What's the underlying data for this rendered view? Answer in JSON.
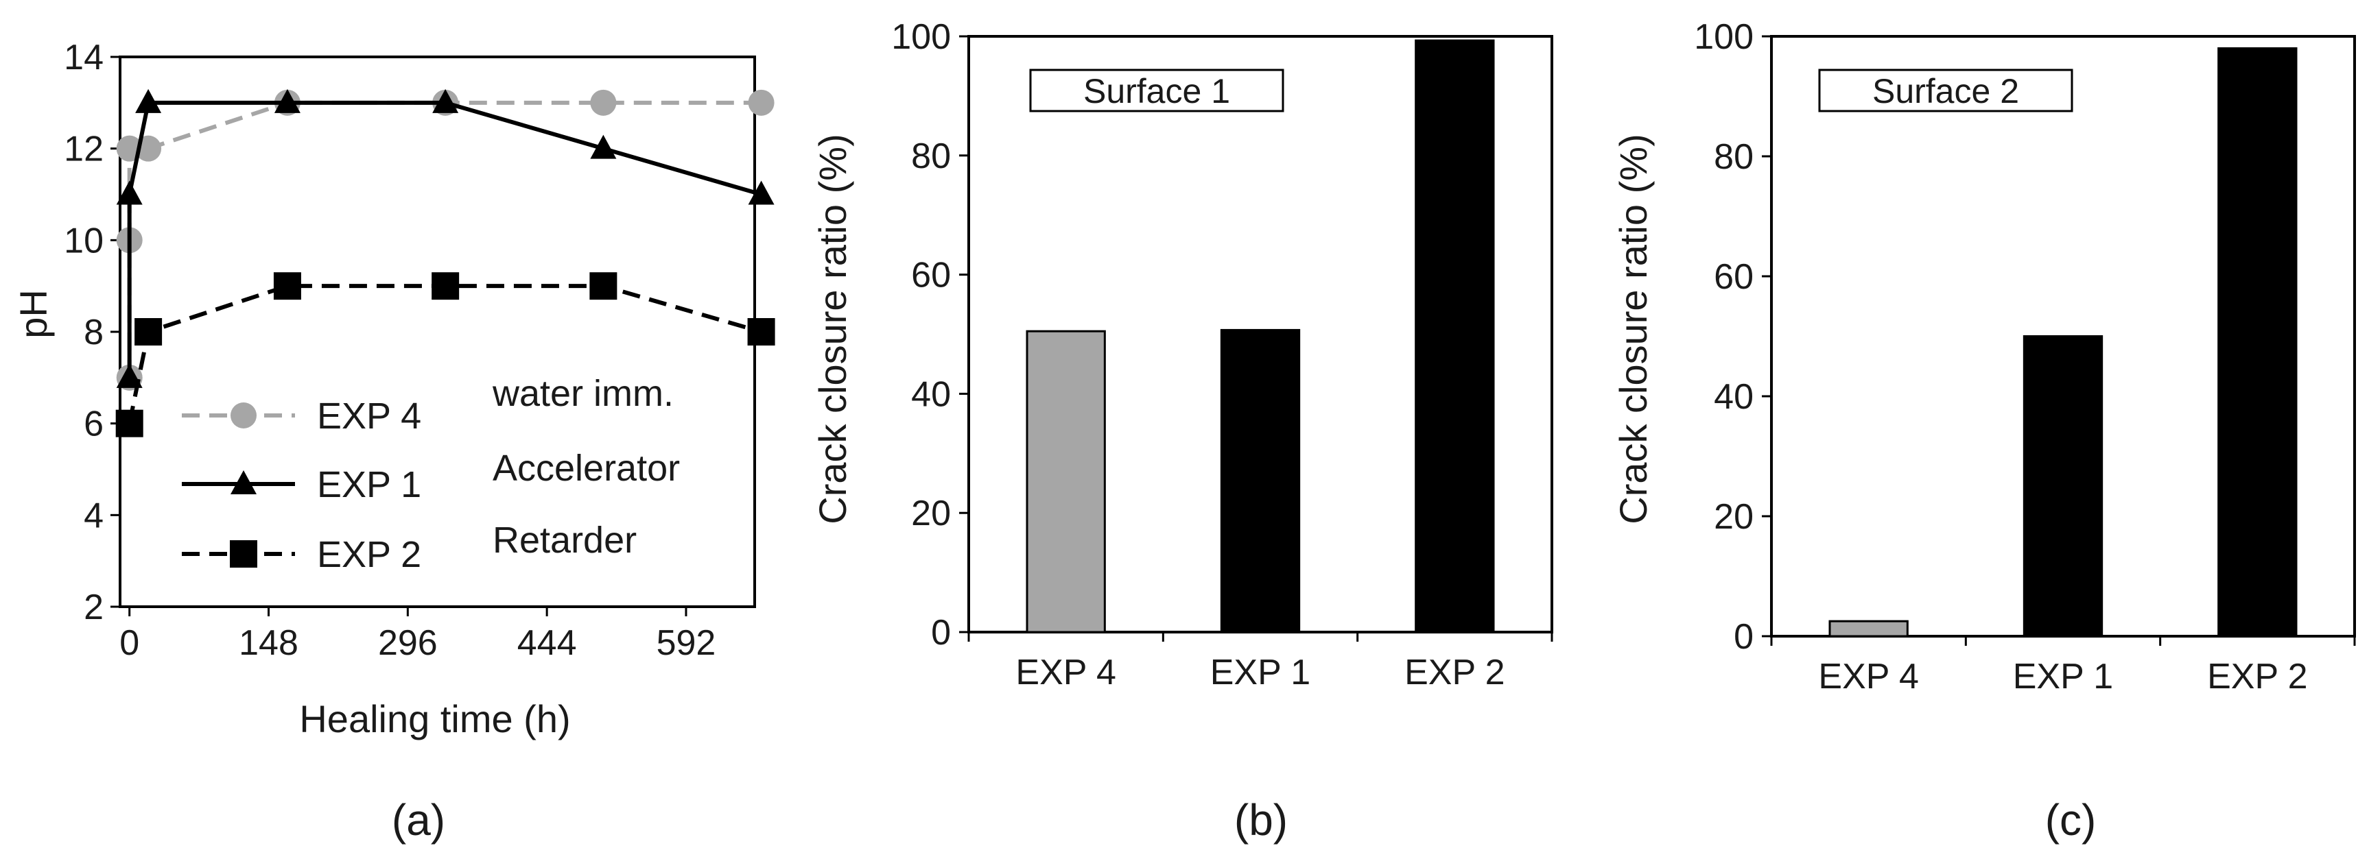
{
  "chart_data": [
    {
      "type": "line",
      "panel_label": "(a)",
      "xlabel": "Healing time (h)",
      "ylabel": "pH",
      "xlim": [
        -10,
        665
      ],
      "ylim": [
        2,
        14
      ],
      "xticks": [
        "0",
        "148",
        "296",
        "444",
        "592"
      ],
      "yticks": [
        "2",
        "4",
        "6",
        "8",
        "10",
        "12",
        "14"
      ],
      "legend_extra_labels": [
        "water imm.",
        "Accelerator",
        "Retarder"
      ],
      "series": [
        {
          "name": "EXP 4",
          "description": "water imm.",
          "color": "#a6a6a6",
          "marker": "circle",
          "dashed": true,
          "x": [
            0,
            0,
            0,
            20,
            168,
            336,
            504,
            672
          ],
          "y": [
            7,
            10,
            12,
            12,
            13,
            13,
            13,
            13
          ]
        },
        {
          "name": "EXP 1",
          "description": "Accelerator",
          "color": "#000000",
          "marker": "triangle",
          "dashed": false,
          "x": [
            0,
            0,
            20,
            168,
            336,
            504,
            672
          ],
          "y": [
            7,
            11,
            13,
            13,
            13,
            12,
            11
          ]
        },
        {
          "name": "EXP 2",
          "description": "Retarder",
          "color": "#000000",
          "marker": "square",
          "dashed": true,
          "x": [
            0,
            20,
            168,
            336,
            504,
            672
          ],
          "y": [
            6,
            8,
            9,
            9,
            9,
            8
          ]
        }
      ]
    },
    {
      "type": "bar",
      "panel_label": "(b)",
      "title": "Surface 1",
      "ylabel": "Crack closure ratio (%)",
      "categories": [
        "EXP 4",
        "EXP 1",
        "EXP 2"
      ],
      "values": [
        50.5,
        50.7,
        99.3
      ],
      "colors": [
        "#a6a6a6",
        "#000000",
        "#000000"
      ],
      "ylim": [
        0,
        100
      ],
      "yticks": [
        "0",
        "20",
        "40",
        "60",
        "80",
        "100"
      ]
    },
    {
      "type": "bar",
      "panel_label": "(c)",
      "title": "Surface 2",
      "ylabel": "Crack closure ratio (%)",
      "categories": [
        "EXP 4",
        "EXP 1",
        "EXP 2"
      ],
      "values": [
        2.5,
        50,
        98
      ],
      "colors": [
        "#a6a6a6",
        "#000000",
        "#000000"
      ],
      "ylim": [
        0,
        100
      ],
      "yticks": [
        "0",
        "20",
        "40",
        "60",
        "80",
        "100"
      ]
    }
  ]
}
